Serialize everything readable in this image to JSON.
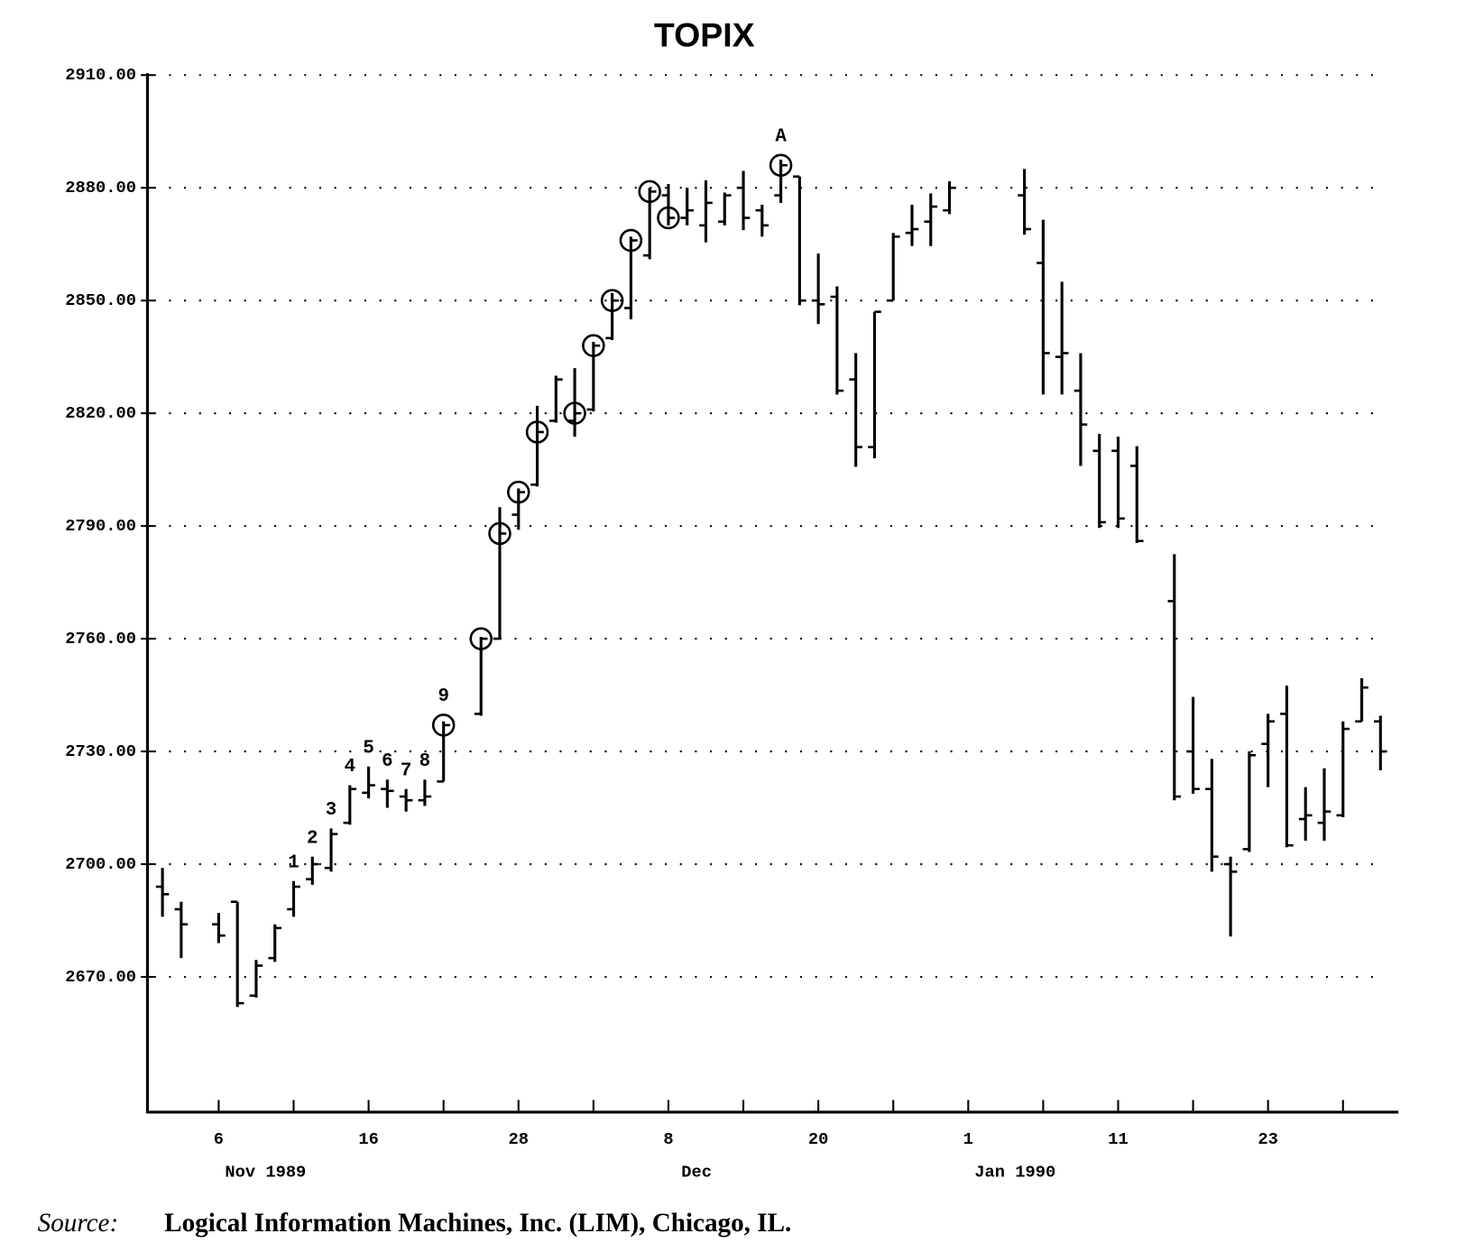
{
  "chart_data": {
    "type": "ohlc",
    "title": "TOPIX",
    "categories": [
      null,
      null,
      null,
      "6",
      null,
      null,
      null,
      null,
      null,
      null,
      null,
      "16",
      null,
      null,
      null,
      null,
      null,
      null,
      null,
      "28",
      null,
      null,
      null,
      null,
      null,
      null,
      null,
      "8",
      null,
      null,
      null,
      null,
      null,
      null,
      null,
      "20",
      null,
      null,
      null,
      null,
      null,
      null,
      null,
      "1",
      null,
      null,
      null,
      null,
      null,
      null,
      null,
      "11",
      null,
      null,
      null,
      null,
      null,
      null,
      null,
      "23",
      null,
      null,
      null,
      null,
      null,
      null
    ],
    "month_labels": [
      null,
      null,
      null,
      null,
      null,
      "Nov 1989",
      null,
      null,
      null,
      null,
      null,
      null,
      null,
      null,
      null,
      null,
      null,
      null,
      null,
      null,
      null,
      null,
      null,
      null,
      null,
      null,
      null,
      null,
      "Dec",
      null,
      null,
      null,
      null,
      null,
      null,
      null,
      null,
      null,
      null,
      null,
      null,
      null,
      null,
      null,
      null,
      "Jan 1990",
      null,
      null,
      null,
      null,
      null,
      null,
      null,
      null,
      null,
      null,
      null,
      null,
      null,
      null,
      null,
      null,
      null,
      null,
      null,
      null
    ],
    "open": [
      2694,
      2688,
      null,
      2684,
      2690,
      2665,
      2675,
      2688,
      2696,
      2699,
      2711,
      2719,
      2720,
      2718,
      2717,
      2722,
      null,
      2740,
      2760,
      2793,
      2801,
      2818,
      2818,
      2821,
      2840,
      2848,
      2862,
      2878,
      2872,
      2870,
      2871,
      2880,
      2874,
      2878,
      2883,
      2850,
      2851,
      2829,
      2811,
      2850,
      2868,
      2871,
      2874,
      null,
      null,
      null,
      2878,
      2860,
      2835,
      2826,
      2810,
      2810,
      2806,
      null,
      2770,
      2730,
      2720,
      2700,
      2704,
      2732,
      2740,
      2712,
      2711,
      2713,
      2738,
      2738
    ],
    "high": [
      2699,
      2690,
      null,
      2687,
      2690,
      2674.5,
      2684,
      2695.5,
      2702,
      2709.5,
      2721,
      2726,
      2722.5,
      2720,
      2722.5,
      2738,
      null,
      2760.5,
      2795,
      2800,
      2822,
      2830,
      2832,
      2839,
      2852,
      2867,
      2880,
      2881,
      2880,
      2882,
      2878.75,
      2884.5,
      2875.5,
      2887.5,
      2883,
      2862.5,
      2853.75,
      2836,
      2847,
      2868,
      2875.5,
      2878.5,
      2881.75,
      null,
      null,
      null,
      2885,
      2871.5,
      2855,
      2836,
      2814.5,
      2813.75,
      2811.25,
      null,
      2782.5,
      2744.5,
      2728,
      2702,
      2730,
      2740,
      2747.5,
      2720.5,
      2725.5,
      2738,
      2749.5,
      2739.5
    ],
    "low": [
      2686,
      2675,
      null,
      2679,
      2662,
      2664.5,
      2674,
      2686,
      2694.5,
      2698,
      2710.5,
      2717.5,
      2715,
      2714,
      2715.5,
      2722,
      null,
      2739.5,
      2760,
      2789,
      2800.5,
      2817.5,
      2813.75,
      2820.5,
      2839.5,
      2845,
      2861,
      2870,
      2870,
      2865.5,
      2870,
      2868.75,
      2867,
      2876,
      2848.75,
      2843.75,
      2825,
      2805.75,
      2808,
      2850,
      2864.5,
      2864.5,
      2873,
      null,
      null,
      null,
      2867.5,
      2825,
      2825,
      2806,
      2789.5,
      2789.5,
      2785.5,
      null,
      2717,
      2718.75,
      2698,
      2680.75,
      2703.25,
      2720.5,
      2704.5,
      2706.25,
      2706.25,
      2712.5,
      2738,
      2725
    ],
    "close": [
      2692,
      2684,
      null,
      2681,
      2663,
      2673,
      2683,
      2694,
      2700,
      2708,
      2720,
      2721,
      2719.5,
      2717,
      2718,
      2737,
      null,
      2760,
      2788,
      2799,
      2815,
      2829,
      2820,
      2838,
      2850,
      2866,
      2879,
      2872,
      2874,
      2876,
      2878,
      2872,
      2870,
      2886,
      2850,
      2849,
      2826,
      2811,
      2847,
      2867,
      2869,
      2875,
      2880,
      null,
      null,
      null,
      2869,
      2836,
      2836,
      2817,
      2791,
      2792,
      2786,
      null,
      2718,
      2720,
      2702,
      2698,
      2729,
      2738,
      2705,
      2713,
      2714,
      2736,
      2747,
      2730
    ],
    "circled": [
      false,
      false,
      false,
      false,
      false,
      false,
      false,
      false,
      false,
      false,
      false,
      false,
      false,
      false,
      false,
      true,
      false,
      true,
      true,
      true,
      true,
      false,
      true,
      true,
      true,
      true,
      true,
      true,
      false,
      false,
      false,
      false,
      false,
      true,
      false,
      false,
      false,
      false,
      false,
      false,
      false,
      false,
      false,
      false,
      false,
      false,
      false,
      false,
      false,
      false,
      false,
      false,
      false,
      false,
      false,
      false,
      false,
      false,
      false,
      false,
      false,
      false,
      false,
      false,
      false,
      false
    ],
    "annotations": [
      null,
      null,
      null,
      null,
      null,
      null,
      null,
      "1",
      "2",
      "3",
      "4",
      "5",
      "6",
      "7",
      "8",
      "9",
      null,
      null,
      null,
      null,
      null,
      null,
      null,
      null,
      null,
      null,
      null,
      null,
      null,
      null,
      null,
      null,
      null,
      "A",
      null,
      null,
      null,
      null,
      null,
      null,
      null,
      null,
      null,
      null,
      null,
      null,
      null,
      null,
      null,
      null,
      null,
      null,
      null,
      null,
      null,
      null,
      null,
      null,
      null,
      null,
      null,
      null,
      null,
      null,
      null,
      null
    ],
    "ylim": [
      2634,
      2910
    ],
    "yticks": [
      {
        "value": 2670,
        "label": "2670.00"
      },
      {
        "value": 2700,
        "label": "2700.00"
      },
      {
        "value": 2730,
        "label": "2730.00"
      },
      {
        "value": 2760,
        "label": "2760.00"
      },
      {
        "value": 2790,
        "label": "2790.00"
      },
      {
        "value": 2820,
        "label": "2820.00"
      },
      {
        "value": 2850,
        "label": "2850.00"
      },
      {
        "value": 2880,
        "label": "2880.00"
      },
      {
        "value": 2910,
        "label": "2910.00"
      }
    ],
    "grid": true,
    "color": "#000000",
    "source": {
      "label": "Source:",
      "text": "Logical Information Machines, Inc. (LIM), Chicago, IL."
    }
  }
}
